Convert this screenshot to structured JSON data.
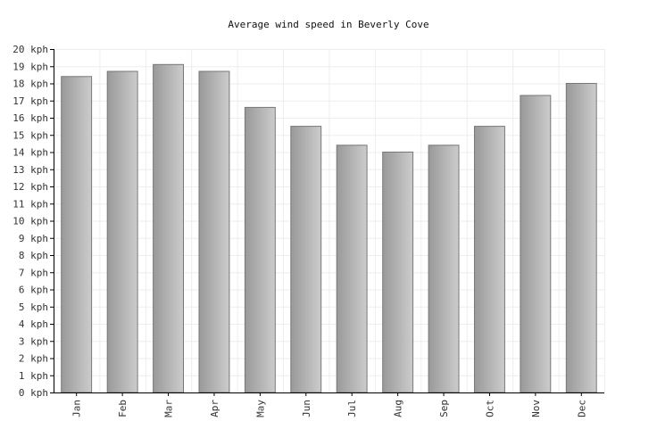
{
  "chart_data": {
    "type": "bar",
    "title": "Average wind speed in Beverly Cove",
    "categories": [
      "Jan",
      "Feb",
      "Mar",
      "Apr",
      "May",
      "Jun",
      "Jul",
      "Aug",
      "Sep",
      "Oct",
      "Nov",
      "Dec"
    ],
    "values": [
      18.4,
      18.7,
      19.1,
      18.7,
      16.6,
      15.5,
      14.4,
      14.0,
      14.4,
      15.5,
      17.3,
      18.0
    ],
    "ylim": [
      0,
      20
    ],
    "ytick_step": 1,
    "y_unit": "kph",
    "xlabel": "",
    "ylabel": "",
    "grid": true,
    "colors": {
      "bar_light": "#cccccc",
      "bar_dark": "#999999",
      "bar_stroke": "#777777"
    }
  }
}
